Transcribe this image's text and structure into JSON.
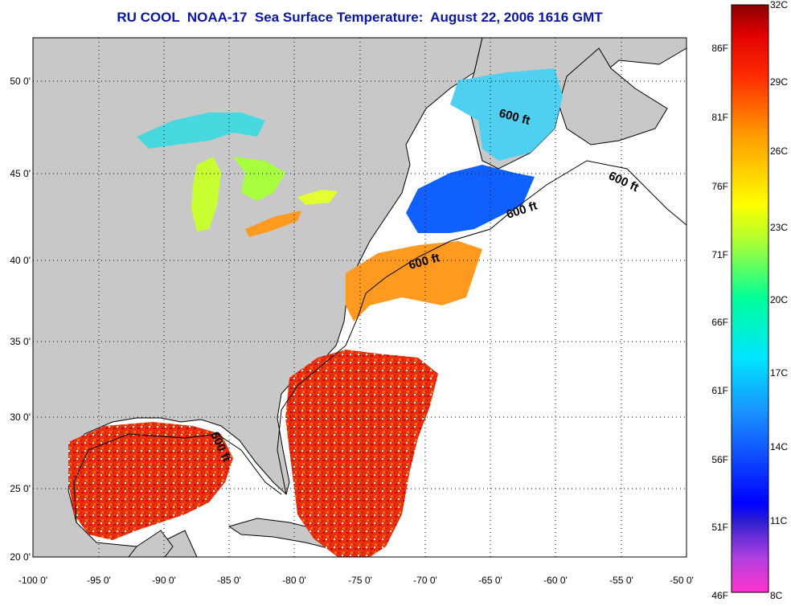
{
  "title": "RU COOL  NOAA-17  Sea Surface Temperature:  August 22, 2006 1616 GMT",
  "map": {
    "x_ticks": [
      "-100 0'",
      "-95 0'",
      "-90 0'",
      "-85 0'",
      "-80 0'",
      "-75 0'",
      "-70 0'",
      "-65 0'",
      "-60 0'",
      "-55 0'",
      "-50 0'"
    ],
    "y_ticks": [
      "50 0'",
      "45 0'",
      "40 0'",
      "35 0'",
      "30 0'",
      "25 0'",
      "20 0'"
    ],
    "lon_range": [
      -100,
      -50
    ],
    "lat_range": [
      20,
      52.5
    ],
    "land_color": "#c8c8c8",
    "no_data_color": "#ffffff",
    "grid": "dotted",
    "isobath_labels": [
      "600 ft",
      "600 ft",
      "600 ft",
      "600 ft",
      "600 ft"
    ]
  },
  "colorbar": {
    "c_labels": [
      "32C",
      "29C",
      "26C",
      "23C",
      "20C",
      "17C",
      "14C",
      "11C",
      "8C"
    ],
    "f_labels": [
      "86F",
      "81F",
      "76F",
      "71F",
      "66F",
      "61F",
      "56F",
      "51F",
      "46F"
    ],
    "min_c": 8,
    "max_c": 32
  }
}
